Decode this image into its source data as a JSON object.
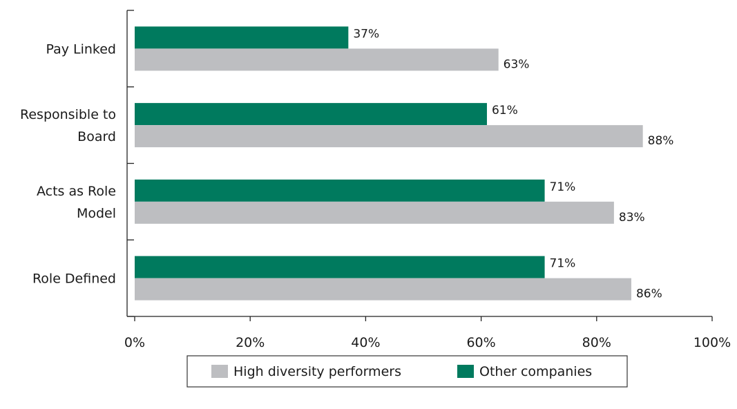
{
  "chart_data": {
    "type": "bar",
    "orientation": "horizontal",
    "categories": [
      "Pay Linked",
      "Responsible to Board",
      "Acts as Role Model",
      "Role Defined"
    ],
    "category_lines": [
      [
        "Pay Linked"
      ],
      [
        "Responsible to",
        "Board"
      ],
      [
        "Acts as Role",
        "Model"
      ],
      [
        "Role Defined"
      ]
    ],
    "series": [
      {
        "name": "Other companies",
        "color": "#007a5e",
        "values": [
          37,
          61,
          71,
          71
        ],
        "labels": [
          "37%",
          "61%",
          "71%",
          "71%"
        ]
      },
      {
        "name": "High diversity performers",
        "color": "#bdbec1",
        "values": [
          63,
          88,
          83,
          86
        ],
        "labels": [
          "63%",
          "88%",
          "83%",
          "86%"
        ]
      }
    ],
    "xlim": [
      0,
      100
    ],
    "xticks": [
      0,
      20,
      40,
      60,
      80,
      100
    ],
    "xtick_labels": [
      "0%",
      "20%",
      "40%",
      "60%",
      "80%",
      "100%"
    ],
    "legend": {
      "position": "bottom",
      "items": [
        {
          "label": "High diversity performers",
          "color": "#bdbec1"
        },
        {
          "label": "Other companies",
          "color": "#007a5e"
        }
      ]
    },
    "grid": false
  }
}
